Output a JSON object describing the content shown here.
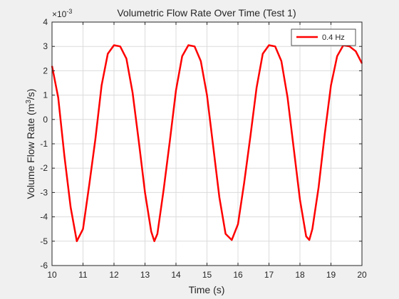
{
  "chart_data": {
    "type": "line",
    "title": "Volumetric Flow Rate Over Time (Test 1)",
    "xlabel": "Time (s)",
    "ylabel": {
      "base": "Volume Flow Rate (m",
      "sup": "3",
      "tail": "/s)"
    },
    "exponent_label": {
      "prefix": "×10",
      "sup": "-3"
    },
    "xlim": [
      10,
      20
    ],
    "ylim": [
      -6,
      4
    ],
    "y_scale_factor": 0.001,
    "grid": true,
    "legend_position": "top-right",
    "x_ticks": [
      "10",
      "11",
      "12",
      "13",
      "14",
      "15",
      "16",
      "17",
      "18",
      "19",
      "20"
    ],
    "y_ticks": [
      "-6",
      "-5",
      "-4",
      "-3",
      "-2",
      "-1",
      "0",
      "1",
      "2",
      "3",
      "4"
    ],
    "series": [
      {
        "name": "0.4 Hz",
        "color": "#ff0000",
        "x": [
          10.0,
          10.2,
          10.4,
          10.6,
          10.8,
          11.0,
          11.2,
          11.4,
          11.6,
          11.8,
          12.0,
          12.2,
          12.4,
          12.6,
          12.8,
          13.0,
          13.2,
          13.3,
          13.4,
          13.6,
          13.8,
          14.0,
          14.2,
          14.4,
          14.6,
          14.8,
          15.0,
          15.2,
          15.4,
          15.6,
          15.8,
          16.0,
          16.2,
          16.4,
          16.6,
          16.8,
          17.0,
          17.2,
          17.4,
          17.6,
          17.8,
          18.0,
          18.2,
          18.3,
          18.4,
          18.6,
          18.8,
          19.0,
          19.2,
          19.4,
          19.6,
          19.8,
          20.0
        ],
        "y": [
          2.2,
          0.9,
          -1.5,
          -3.6,
          -5.0,
          -4.5,
          -2.7,
          -0.8,
          1.4,
          2.7,
          3.05,
          3.0,
          2.5,
          1.1,
          -0.9,
          -3.0,
          -4.6,
          -5.0,
          -4.7,
          -2.9,
          -0.9,
          1.2,
          2.6,
          3.05,
          3.0,
          2.4,
          1.0,
          -1.1,
          -3.2,
          -4.7,
          -4.95,
          -4.3,
          -2.6,
          -0.7,
          1.3,
          2.7,
          3.05,
          3.0,
          2.4,
          0.9,
          -1.2,
          -3.3,
          -4.8,
          -4.95,
          -4.5,
          -2.8,
          -0.6,
          1.4,
          2.6,
          3.05,
          3.0,
          2.8,
          2.3
        ]
      }
    ]
  }
}
